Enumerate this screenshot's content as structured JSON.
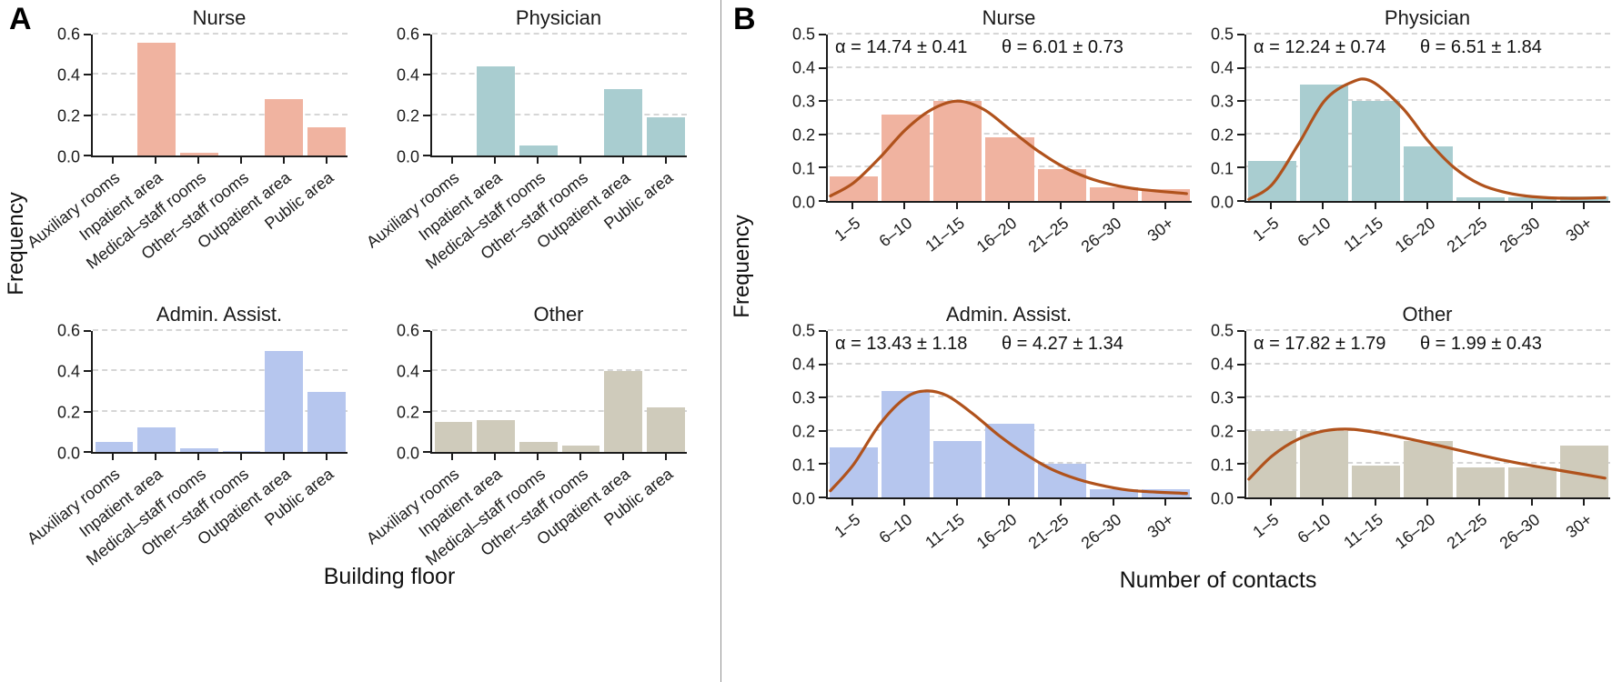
{
  "figure": {
    "panel_a": {
      "label": "A",
      "xlabel": "Building floor",
      "ylabel": "Frequency"
    },
    "panel_b": {
      "label": "B",
      "xlabel": "Number of contacts",
      "ylabel": "Frequency"
    }
  },
  "colors": {
    "nurse": "#f0b3a0",
    "physician": "#a9cdd0",
    "admin_assist": "#b6c6ee",
    "other": "#cfcbbb",
    "fit_curve": "#b0521c",
    "grid": "#d6d6d6",
    "axis": "#1c1c1c"
  },
  "chart_data": [
    {
      "panel": "A",
      "type": "bar",
      "title": "Nurse",
      "categories": [
        "Auxiliary rooms",
        "Inpatient area",
        "Medical–staff rooms",
        "Other–staff rooms",
        "Outpatient area",
        "Public area"
      ],
      "values": [
        0.0,
        0.56,
        0.015,
        0.0,
        0.28,
        0.14
      ],
      "ylim": [
        0,
        0.6
      ],
      "ytick_step": 0.2,
      "grid": true,
      "color_key": "nurse"
    },
    {
      "panel": "A",
      "type": "bar",
      "title": "Physician",
      "categories": [
        "Auxiliary rooms",
        "Inpatient area",
        "Medical–staff rooms",
        "Other–staff rooms",
        "Outpatient area",
        "Public area"
      ],
      "values": [
        0.0,
        0.44,
        0.05,
        0.0,
        0.33,
        0.19
      ],
      "ylim": [
        0,
        0.6
      ],
      "ytick_step": 0.2,
      "grid": true,
      "color_key": "physician"
    },
    {
      "panel": "A",
      "type": "bar",
      "title": "Admin. Assist.",
      "categories": [
        "Auxiliary rooms",
        "Inpatient area",
        "Medical–staff rooms",
        "Other–staff rooms",
        "Outpatient area",
        "Public area"
      ],
      "values": [
        0.05,
        0.12,
        0.02,
        0.005,
        0.5,
        0.3
      ],
      "ylim": [
        0,
        0.6
      ],
      "ytick_step": 0.2,
      "grid": true,
      "color_key": "admin_assist"
    },
    {
      "panel": "A",
      "type": "bar",
      "title": "Other",
      "categories": [
        "Auxiliary rooms",
        "Inpatient area",
        "Medical–staff rooms",
        "Other–staff rooms",
        "Outpatient area",
        "Public area"
      ],
      "values": [
        0.15,
        0.16,
        0.05,
        0.03,
        0.4,
        0.22
      ],
      "ylim": [
        0,
        0.6
      ],
      "ytick_step": 0.2,
      "grid": true,
      "color_key": "other"
    },
    {
      "panel": "B",
      "type": "bar",
      "title": "Nurse",
      "categories": [
        "1–5",
        "6–10",
        "11–15",
        "16–20",
        "21–25",
        "26–30",
        "30+"
      ],
      "values": [
        0.075,
        0.26,
        0.3,
        0.19,
        0.095,
        0.04,
        0.035
      ],
      "ylim": [
        0,
        0.5
      ],
      "ytick_step": 0.1,
      "grid": true,
      "color_key": "nurse",
      "fit": {
        "alpha": "α = 14.74 ± 0.41",
        "theta": "θ = 6.01 ± 0.73"
      },
      "fit_curve": [
        [
          0.05,
          0.015
        ],
        [
          0.5,
          0.055
        ],
        [
          1.0,
          0.13
        ],
        [
          1.5,
          0.215
        ],
        [
          2.0,
          0.275
        ],
        [
          2.5,
          0.3
        ],
        [
          3.0,
          0.275
        ],
        [
          3.5,
          0.215
        ],
        [
          4.0,
          0.155
        ],
        [
          4.5,
          0.105
        ],
        [
          5.0,
          0.07
        ],
        [
          5.5,
          0.048
        ],
        [
          6.0,
          0.035
        ],
        [
          6.9,
          0.022
        ]
      ]
    },
    {
      "panel": "B",
      "type": "bar",
      "title": "Physician",
      "categories": [
        "1–5",
        "6–10",
        "11–15",
        "16–20",
        "21–25",
        "26–30",
        "30+"
      ],
      "values": [
        0.12,
        0.35,
        0.3,
        0.165,
        0.01,
        0.01,
        0.015
      ],
      "ylim": [
        0,
        0.5
      ],
      "ytick_step": 0.1,
      "grid": true,
      "color_key": "physician",
      "fit": {
        "alpha": "α = 12.24 ± 0.74",
        "theta": "θ = 6.51 ± 1.84"
      },
      "fit_curve": [
        [
          0.05,
          0.005
        ],
        [
          0.5,
          0.05
        ],
        [
          1.0,
          0.17
        ],
        [
          1.5,
          0.3
        ],
        [
          2.0,
          0.355
        ],
        [
          2.4,
          0.36
        ],
        [
          3.0,
          0.28
        ],
        [
          3.5,
          0.18
        ],
        [
          4.0,
          0.1
        ],
        [
          4.5,
          0.05
        ],
        [
          5.0,
          0.025
        ],
        [
          5.5,
          0.013
        ],
        [
          6.2,
          0.008
        ],
        [
          6.9,
          0.01
        ]
      ]
    },
    {
      "panel": "B",
      "type": "bar",
      "title": "Admin. Assist.",
      "categories": [
        "1–5",
        "6–10",
        "11–15",
        "16–20",
        "21–25",
        "26–30",
        "30+"
      ],
      "values": [
        0.15,
        0.32,
        0.17,
        0.22,
        0.1,
        0.025,
        0.025
      ],
      "ylim": [
        0,
        0.5
      ],
      "ytick_step": 0.1,
      "grid": true,
      "color_key": "admin_assist",
      "fit": {
        "alpha": "α = 13.43 ± 1.18",
        "theta": "θ = 4.27 ± 1.34"
      },
      "fit_curve": [
        [
          0.05,
          0.02
        ],
        [
          0.5,
          0.1
        ],
        [
          1.0,
          0.22
        ],
        [
          1.5,
          0.3
        ],
        [
          1.9,
          0.32
        ],
        [
          2.3,
          0.305
        ],
        [
          2.8,
          0.25
        ],
        [
          3.3,
          0.185
        ],
        [
          3.8,
          0.13
        ],
        [
          4.3,
          0.085
        ],
        [
          4.8,
          0.055
        ],
        [
          5.3,
          0.035
        ],
        [
          5.9,
          0.02
        ],
        [
          6.9,
          0.012
        ]
      ]
    },
    {
      "panel": "B",
      "type": "bar",
      "title": "Other",
      "categories": [
        "1–5",
        "6–10",
        "11–15",
        "16–20",
        "21–25",
        "26–30",
        "30+"
      ],
      "values": [
        0.2,
        0.2,
        0.095,
        0.17,
        0.09,
        0.09,
        0.155
      ],
      "ylim": [
        0,
        0.5
      ],
      "ytick_step": 0.1,
      "grid": true,
      "color_key": "other",
      "fit": {
        "alpha": "α = 17.82 ± 1.79",
        "theta": "θ = 1.99 ± 0.43"
      },
      "fit_curve": [
        [
          0.05,
          0.055
        ],
        [
          0.5,
          0.125
        ],
        [
          1.0,
          0.175
        ],
        [
          1.5,
          0.2
        ],
        [
          2.0,
          0.205
        ],
        [
          2.5,
          0.195
        ],
        [
          3.0,
          0.18
        ],
        [
          3.5,
          0.163
        ],
        [
          4.0,
          0.145
        ],
        [
          4.5,
          0.127
        ],
        [
          5.0,
          0.11
        ],
        [
          5.5,
          0.095
        ],
        [
          6.0,
          0.082
        ],
        [
          6.9,
          0.058
        ]
      ]
    }
  ]
}
